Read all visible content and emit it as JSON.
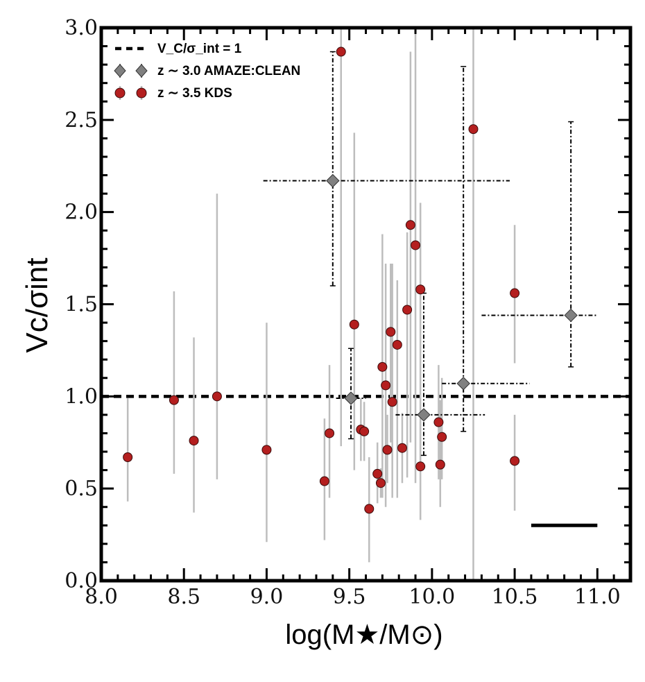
{
  "chart_data": {
    "type": "scatter",
    "xlabel": "log(M★/M⊙)",
    "ylabel": "Vc/σint",
    "xlim": [
      8.0,
      11.2
    ],
    "ylim": [
      0.0,
      3.0
    ],
    "x_ticks": [
      "8.0",
      "8.5",
      "9.0",
      "9.5",
      "10.0",
      "10.5",
      "11.0"
    ],
    "y_ticks": [
      "0.0",
      "0.5",
      "1.0",
      "1.5",
      "2.0",
      "2.5",
      "3.0"
    ],
    "reference_line": {
      "label": "V_C/σ_int = 1",
      "y": 1.0
    },
    "legend": [
      {
        "key": "ref",
        "label": "V_C/σ_int = 1"
      },
      {
        "key": "amaze",
        "label": "z ∼ 3.0 AMAZE:CLEAN"
      },
      {
        "key": "kds",
        "label": "z ∼ 3.5 KDS"
      }
    ],
    "series": [
      {
        "name": "z ∼ 3.5 KDS",
        "color": "#b41f1f",
        "points": [
          {
            "x": 8.16,
            "y": 0.67,
            "ylo": 0.43,
            "yhi": 0.99
          },
          {
            "x": 8.44,
            "y": 0.98,
            "ylo": 0.58,
            "yhi": 1.57
          },
          {
            "x": 8.56,
            "y": 0.76,
            "ylo": 0.37,
            "yhi": 1.32
          },
          {
            "x": 8.7,
            "y": 1.0,
            "ylo": 0.55,
            "yhi": 2.1
          },
          {
            "x": 9.0,
            "y": 0.71,
            "ylo": 0.21,
            "yhi": 1.4
          },
          {
            "x": 9.35,
            "y": 0.54,
            "ylo": 0.22,
            "yhi": 0.88
          },
          {
            "x": 9.38,
            "y": 0.8,
            "ylo": 0.45,
            "yhi": 1.17
          },
          {
            "x": 9.45,
            "y": 2.87,
            "ylo": 0.73,
            "yhi": 3.0
          },
          {
            "x": 9.53,
            "y": 1.39,
            "ylo": 0.6,
            "yhi": 2.43
          },
          {
            "x": 9.57,
            "y": 0.82,
            "ylo": 0.65,
            "yhi": 0.99
          },
          {
            "x": 9.59,
            "y": 0.81,
            "ylo": 0.65,
            "yhi": 0.97
          },
          {
            "x": 9.62,
            "y": 0.39,
            "ylo": 0.1,
            "yhi": 0.67
          },
          {
            "x": 9.67,
            "y": 0.58,
            "ylo": 0.42,
            "yhi": 0.75
          },
          {
            "x": 9.69,
            "y": 0.53,
            "ylo": 0.45,
            "yhi": 0.61
          },
          {
            "x": 9.7,
            "y": 1.16,
            "ylo": 0.45,
            "yhi": 1.88
          },
          {
            "x": 9.72,
            "y": 1.06,
            "ylo": 0.4,
            "yhi": 1.72
          },
          {
            "x": 9.73,
            "y": 0.71,
            "ylo": 0.53,
            "yhi": 0.9
          },
          {
            "x": 9.75,
            "y": 1.35,
            "ylo": 0.75,
            "yhi": 1.72
          },
          {
            "x": 9.76,
            "y": 0.97,
            "ylo": 0.45,
            "yhi": 1.72
          },
          {
            "x": 9.79,
            "y": 1.28,
            "ylo": 0.45,
            "yhi": 1.63
          },
          {
            "x": 9.82,
            "y": 0.72,
            "ylo": 0.53,
            "yhi": 0.91
          },
          {
            "x": 9.85,
            "y": 1.47,
            "ylo": 0.56,
            "yhi": 1.89
          },
          {
            "x": 9.87,
            "y": 1.93,
            "ylo": 0.75,
            "yhi": 2.87
          },
          {
            "x": 9.9,
            "y": 1.82,
            "ylo": 0.53,
            "yhi": 3.0
          },
          {
            "x": 9.93,
            "y": 1.58,
            "ylo": 0.64,
            "yhi": 2.05
          },
          {
            "x": 9.93,
            "y": 0.62,
            "ylo": 0.33,
            "yhi": 0.86
          },
          {
            "x": 10.04,
            "y": 0.86,
            "ylo": 0.55,
            "yhi": 1.17
          },
          {
            "x": 10.05,
            "y": 0.63,
            "ylo": 0.4,
            "yhi": 0.98
          },
          {
            "x": 10.06,
            "y": 0.78,
            "ylo": 0.55,
            "yhi": 1.1
          },
          {
            "x": 10.25,
            "y": 2.45,
            "ylo": 0.0,
            "yhi": 3.0
          },
          {
            "x": 10.5,
            "y": 1.56,
            "ylo": 1.18,
            "yhi": 1.93
          },
          {
            "x": 10.5,
            "y": 0.65,
            "ylo": 0.38,
            "yhi": 0.9
          }
        ]
      },
      {
        "name": "z ∼ 3.0 AMAZE:CLEAN",
        "color": "#808080",
        "points": [
          {
            "x": 9.4,
            "y": 2.17,
            "ylo": 1.6,
            "yhi": 2.87,
            "xlo": 8.98,
            "xhi": 10.47
          },
          {
            "x": 9.51,
            "y": 0.99,
            "ylo": 0.77,
            "yhi": 1.26,
            "xlo": 9.42,
            "xhi": 9.6
          },
          {
            "x": 9.95,
            "y": 0.9,
            "ylo": 0.68,
            "yhi": 1.56,
            "xlo": 9.78,
            "xhi": 10.32
          },
          {
            "x": 10.19,
            "y": 1.07,
            "ylo": 0.81,
            "yhi": 2.79,
            "xlo": 10.06,
            "xhi": 10.59
          },
          {
            "x": 10.84,
            "y": 1.44,
            "ylo": 1.16,
            "yhi": 2.49,
            "xlo": 10.3,
            "xhi": 11.0
          }
        ]
      }
    ],
    "annotation_bar": {
      "x_start": 10.6,
      "x_end": 11.0,
      "y": 0.3
    }
  }
}
